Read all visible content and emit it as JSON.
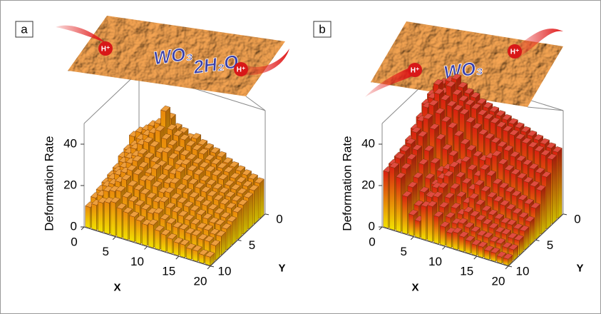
{
  "chart_data": [
    {
      "type": "bar3d",
      "label": "a",
      "annotations": [
        "WO₃",
        "2H₂O"
      ],
      "ions": [
        "H⁺",
        "H⁺"
      ],
      "zlabel": "Deformation Rate",
      "xlabel": "X",
      "ylabel": "Y",
      "xlim": [
        0,
        20
      ],
      "ylim": [
        0,
        10
      ],
      "zlim": [
        0,
        50
      ],
      "xticks": [
        0,
        5,
        10,
        15,
        20
      ],
      "yticks": [
        0,
        5,
        10
      ],
      "zticks": [
        0,
        20,
        40
      ],
      "color": [
        "#f2e400",
        "#e8860c"
      ],
      "values": [
        [
          22,
          25,
          28,
          30,
          33,
          35,
          31,
          30,
          28,
          29,
          27,
          26,
          25,
          24,
          22,
          21,
          20,
          19,
          18,
          17
        ],
        [
          24,
          27,
          29,
          32,
          34,
          41,
          33,
          31,
          30,
          28,
          27,
          26,
          24,
          23,
          22,
          21,
          19,
          18,
          17,
          16
        ],
        [
          20,
          23,
          27,
          30,
          32,
          34,
          31,
          29,
          27,
          26,
          25,
          24,
          23,
          22,
          21,
          20,
          18,
          17,
          16,
          15
        ],
        [
          19,
          22,
          25,
          28,
          30,
          29,
          27,
          28,
          26,
          24,
          25,
          23,
          22,
          20,
          19,
          18,
          17,
          16,
          15,
          14
        ],
        [
          16,
          20,
          23,
          25,
          27,
          26,
          25,
          24,
          23,
          22,
          24,
          21,
          20,
          19,
          18,
          17,
          16,
          15,
          14,
          13
        ],
        [
          15,
          18,
          21,
          24,
          26,
          24,
          22,
          25,
          21,
          20,
          21,
          19,
          18,
          17,
          16,
          15,
          14,
          13,
          12,
          11
        ],
        [
          14,
          17,
          20,
          22,
          24,
          23,
          21,
          22,
          20,
          18,
          19,
          17,
          16,
          15,
          14,
          13,
          12,
          11,
          11,
          10
        ],
        [
          13,
          16,
          18,
          20,
          22,
          20,
          19,
          18,
          17,
          16,
          17,
          15,
          14,
          13,
          12,
          11,
          10,
          10,
          9,
          9
        ],
        [
          12,
          14,
          17,
          18,
          19,
          17,
          16,
          15,
          14,
          13,
          14,
          12,
          11,
          10,
          10,
          9,
          9,
          8,
          8,
          7
        ],
        [
          10,
          12,
          14,
          15,
          16,
          14,
          13,
          12,
          11,
          10,
          11,
          9,
          8,
          7,
          6,
          6,
          5,
          5,
          4,
          4
        ]
      ]
    },
    {
      "type": "bar3d",
      "label": "b",
      "annotations": [
        "WO₃"
      ],
      "ions": [
        "H⁺",
        "H⁺"
      ],
      "zlabel": "Deformation Rate",
      "xlabel": "X",
      "ylabel": "Y",
      "xlim": [
        0,
        20
      ],
      "ylim": [
        0,
        10
      ],
      "zlim": [
        0,
        50
      ],
      "xticks": [
        0,
        5,
        10,
        15,
        20
      ],
      "yticks": [
        0,
        5,
        10
      ],
      "zticks": [
        0,
        20,
        40
      ],
      "color": [
        "#f2e400",
        "#d81e10"
      ],
      "values": [
        [
          45,
          48,
          50,
          52,
          49,
          47,
          46,
          44,
          43,
          42,
          41,
          40,
          39,
          38,
          37,
          36,
          35,
          34,
          33,
          32
        ],
        [
          44,
          50,
          47,
          51,
          48,
          46,
          45,
          44,
          42,
          41,
          40,
          39,
          38,
          37,
          36,
          35,
          34,
          33,
          32,
          31
        ],
        [
          42,
          46,
          49,
          47,
          45,
          44,
          43,
          40,
          38,
          36,
          35,
          34,
          33,
          32,
          30,
          29,
          28,
          27,
          26,
          25
        ],
        [
          38,
          44,
          46,
          43,
          40,
          38,
          35,
          32,
          30,
          28,
          27,
          29,
          31,
          28,
          26,
          25,
          24,
          23,
          22,
          21
        ],
        [
          35,
          40,
          42,
          38,
          34,
          30,
          28,
          25,
          27,
          24,
          22,
          26,
          24,
          21,
          20,
          19,
          18,
          17,
          16,
          15
        ],
        [
          32,
          37,
          36,
          30,
          25,
          22,
          24,
          26,
          22,
          20,
          18,
          21,
          19,
          17,
          16,
          15,
          14,
          13,
          12,
          11
        ],
        [
          30,
          34,
          32,
          26,
          20,
          18,
          22,
          24,
          19,
          16,
          14,
          17,
          15,
          13,
          12,
          11,
          10,
          10,
          9,
          9
        ],
        [
          29,
          33,
          30,
          22,
          16,
          15,
          20,
          21,
          17,
          13,
          11,
          13,
          12,
          11,
          10,
          9,
          8,
          8,
          7,
          7
        ],
        [
          28,
          32,
          28,
          20,
          12,
          12,
          18,
          19,
          15,
          11,
          9,
          10,
          9,
          8,
          7,
          7,
          6,
          6,
          5,
          5
        ],
        [
          27,
          30,
          26,
          18,
          10,
          8,
          16,
          17,
          13,
          9,
          7,
          8,
          7,
          6,
          5,
          5,
          4,
          4,
          3,
          3
        ]
      ]
    }
  ]
}
